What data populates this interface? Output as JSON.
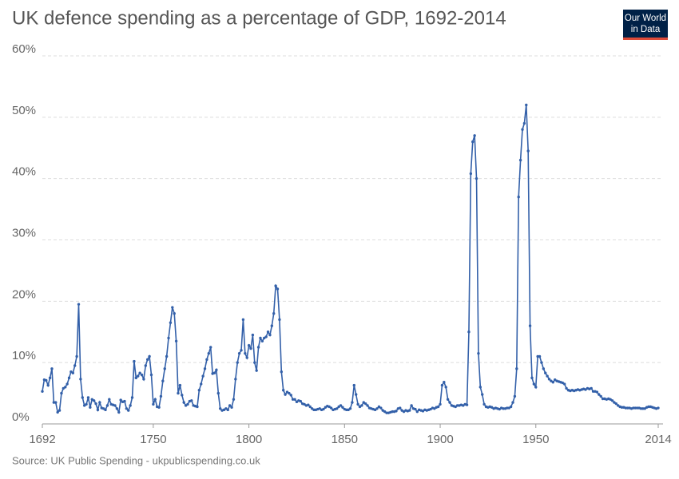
{
  "chart_data": {
    "type": "line",
    "title": "UK defence spending as a percentage of GDP, 1692-2014",
    "logo": [
      "Our World",
      "in Data"
    ],
    "source": "Source: UK Public Spending - ukpublicspending.co.uk",
    "x": [
      1692,
      1693,
      1694,
      1695,
      1696,
      1697,
      1698,
      1699,
      1700,
      1701,
      1702,
      1703,
      1704,
      1705,
      1706,
      1707,
      1708,
      1709,
      1710,
      1711,
      1712,
      1713,
      1714,
      1715,
      1716,
      1717,
      1718,
      1719,
      1720,
      1721,
      1722,
      1723,
      1724,
      1725,
      1726,
      1727,
      1728,
      1729,
      1730,
      1731,
      1732,
      1733,
      1734,
      1735,
      1736,
      1737,
      1738,
      1739,
      1740,
      1741,
      1742,
      1743,
      1744,
      1745,
      1746,
      1747,
      1748,
      1749,
      1750,
      1751,
      1752,
      1753,
      1754,
      1755,
      1756,
      1757,
      1758,
      1759,
      1760,
      1761,
      1762,
      1763,
      1764,
      1765,
      1766,
      1767,
      1768,
      1769,
      1770,
      1771,
      1772,
      1773,
      1774,
      1775,
      1776,
      1777,
      1778,
      1779,
      1780,
      1781,
      1782,
      1783,
      1784,
      1785,
      1786,
      1787,
      1788,
      1789,
      1790,
      1791,
      1792,
      1793,
      1794,
      1795,
      1796,
      1797,
      1798,
      1799,
      1800,
      1801,
      1802,
      1803,
      1804,
      1805,
      1806,
      1807,
      1808,
      1809,
      1810,
      1811,
      1812,
      1813,
      1814,
      1815,
      1816,
      1817,
      1818,
      1819,
      1820,
      1821,
      1822,
      1823,
      1824,
      1825,
      1826,
      1827,
      1828,
      1829,
      1830,
      1831,
      1832,
      1833,
      1834,
      1835,
      1836,
      1837,
      1838,
      1839,
      1840,
      1841,
      1842,
      1843,
      1844,
      1845,
      1846,
      1847,
      1848,
      1849,
      1850,
      1851,
      1852,
      1853,
      1854,
      1855,
      1856,
      1857,
      1858,
      1859,
      1860,
      1861,
      1862,
      1863,
      1864,
      1865,
      1866,
      1867,
      1868,
      1869,
      1870,
      1871,
      1872,
      1873,
      1874,
      1875,
      1876,
      1877,
      1878,
      1879,
      1880,
      1881,
      1882,
      1883,
      1884,
      1885,
      1886,
      1887,
      1888,
      1889,
      1890,
      1891,
      1892,
      1893,
      1894,
      1895,
      1896,
      1897,
      1898,
      1899,
      1900,
      1901,
      1902,
      1903,
      1904,
      1905,
      1906,
      1907,
      1908,
      1909,
      1910,
      1911,
      1912,
      1913,
      1914,
      1915,
      1916,
      1917,
      1918,
      1919,
      1920,
      1921,
      1922,
      1923,
      1924,
      1925,
      1926,
      1927,
      1928,
      1929,
      1930,
      1931,
      1932,
      1933,
      1934,
      1935,
      1936,
      1937,
      1938,
      1939,
      1940,
      1941,
      1942,
      1943,
      1944,
      1945,
      1946,
      1947,
      1948,
      1949,
      1950,
      1951,
      1952,
      1953,
      1954,
      1955,
      1956,
      1957,
      1958,
      1959,
      1960,
      1961,
      1962,
      1963,
      1964,
      1965,
      1966,
      1967,
      1968,
      1969,
      1970,
      1971,
      1972,
      1973,
      1974,
      1975,
      1976,
      1977,
      1978,
      1979,
      1980,
      1981,
      1982,
      1983,
      1984,
      1985,
      1986,
      1987,
      1988,
      1989,
      1990,
      1991,
      1992,
      1993,
      1994,
      1995,
      1996,
      1997,
      1998,
      1999,
      2000,
      2001,
      2002,
      2003,
      2004,
      2005,
      2006,
      2007,
      2008,
      2009,
      2010,
      2011,
      2012,
      2013,
      2014
    ],
    "series": [
      {
        "name": "United Kingdom",
        "color": "#3360a9",
        "values": [
          5.3,
          7.2,
          7.1,
          6.3,
          7.5,
          9.0,
          3.5,
          3.5,
          1.9,
          2.2,
          5.0,
          5.8,
          6.0,
          6.5,
          7.5,
          8.5,
          8.3,
          9.5,
          11.0,
          19.5,
          7.3,
          4.3,
          3.0,
          3.2,
          4.3,
          2.7,
          4.0,
          3.8,
          3.3,
          2.3,
          3.5,
          2.6,
          2.5,
          2.3,
          3.0,
          4.0,
          3.2,
          3.1,
          3.0,
          2.5,
          1.9,
          3.9,
          3.6,
          3.7,
          2.5,
          2.2,
          3.0,
          4.3,
          10.2,
          7.5,
          7.8,
          8.3,
          8.0,
          7.3,
          9.5,
          10.5,
          11.0,
          8.0,
          3.2,
          4.0,
          2.8,
          2.7,
          4.5,
          7.0,
          9.0,
          11.0,
          14.0,
          16.5,
          19.0,
          18.0,
          13.5,
          5.0,
          6.3,
          4.7,
          3.5,
          3.0,
          3.2,
          3.7,
          3.8,
          3.0,
          2.9,
          2.8,
          5.5,
          6.5,
          7.8,
          9.0,
          10.5,
          11.5,
          12.5,
          8.2,
          8.3,
          8.8,
          5.0,
          2.5,
          2.2,
          2.3,
          2.5,
          2.3,
          3.0,
          2.7,
          4.0,
          7.3,
          10.0,
          11.5,
          12.0,
          17.0,
          11.5,
          10.8,
          12.8,
          12.3,
          14.5,
          10.0,
          8.7,
          12.5,
          14.0,
          13.5,
          14.0,
          14.2,
          15.0,
          14.5,
          16.0,
          18.0,
          22.5,
          22.0,
          17.0,
          8.5,
          5.5,
          4.8,
          5.2,
          5.0,
          4.7,
          4.0,
          4.0,
          3.6,
          3.8,
          3.7,
          3.3,
          3.2,
          3.0,
          3.1,
          2.8,
          2.5,
          2.3,
          2.3,
          2.4,
          2.5,
          2.3,
          2.4,
          2.7,
          2.9,
          2.8,
          2.6,
          2.3,
          2.4,
          2.5,
          2.8,
          3.0,
          2.7,
          2.4,
          2.3,
          2.3,
          2.5,
          3.5,
          6.3,
          4.8,
          3.2,
          2.8,
          3.0,
          3.5,
          3.3,
          3.0,
          2.6,
          2.5,
          2.4,
          2.3,
          2.5,
          2.8,
          2.6,
          2.2,
          2.0,
          1.8,
          1.8,
          1.9,
          2.0,
          2.0,
          2.1,
          2.5,
          2.6,
          2.2,
          2.0,
          2.2,
          2.1,
          2.2,
          3.0,
          2.5,
          2.4,
          2.0,
          2.3,
          2.2,
          2.1,
          2.3,
          2.2,
          2.3,
          2.4,
          2.6,
          2.5,
          2.7,
          2.8,
          3.2,
          6.3,
          6.8,
          6.0,
          4.0,
          3.5,
          3.0,
          2.9,
          2.8,
          3.0,
          3.0,
          3.1,
          3.0,
          3.2,
          3.1,
          15.0,
          40.8,
          46.0,
          47.0,
          40.0,
          11.5,
          6.0,
          4.8,
          3.2,
          2.8,
          2.7,
          2.8,
          2.7,
          2.5,
          2.6,
          2.5,
          2.4,
          2.6,
          2.5,
          2.5,
          2.6,
          2.6,
          2.8,
          3.5,
          4.5,
          9.0,
          37.0,
          43.0,
          48.0,
          49.0,
          52.0,
          44.5,
          16.0,
          7.5,
          6.5,
          6.0,
          11.0,
          11.0,
          10.0,
          9.0,
          8.3,
          7.8,
          7.3,
          7.0,
          6.8,
          7.2,
          7.0,
          6.9,
          6.8,
          6.7,
          6.5,
          5.8,
          5.5,
          5.4,
          5.5,
          5.4,
          5.5,
          5.6,
          5.5,
          5.6,
          5.7,
          5.6,
          5.8,
          5.7,
          5.8,
          5.3,
          5.3,
          5.2,
          4.8,
          4.5,
          4.1,
          4.1,
          4.0,
          4.1,
          4.0,
          3.8,
          3.5,
          3.3,
          3.0,
          2.8,
          2.7,
          2.7,
          2.6,
          2.6,
          2.6,
          2.5,
          2.6,
          2.6,
          2.6,
          2.6,
          2.5,
          2.5,
          2.5,
          2.7,
          2.8,
          2.8,
          2.7,
          2.6,
          2.5,
          2.6
        ]
      }
    ],
    "xlim": [
      1692,
      2014
    ],
    "xticks": [
      1692,
      1750,
      1800,
      1850,
      1900,
      1950,
      2014
    ],
    "ylim": [
      0,
      60
    ],
    "yticks": [
      {
        "value": 0,
        "label": "0%"
      },
      {
        "value": 10,
        "label": "10%"
      },
      {
        "value": 20,
        "label": "20%"
      },
      {
        "value": 30,
        "label": "30%"
      },
      {
        "value": 40,
        "label": "40%"
      },
      {
        "value": 50,
        "label": "50%"
      },
      {
        "value": 60,
        "label": "60%"
      }
    ],
    "grid": true
  }
}
